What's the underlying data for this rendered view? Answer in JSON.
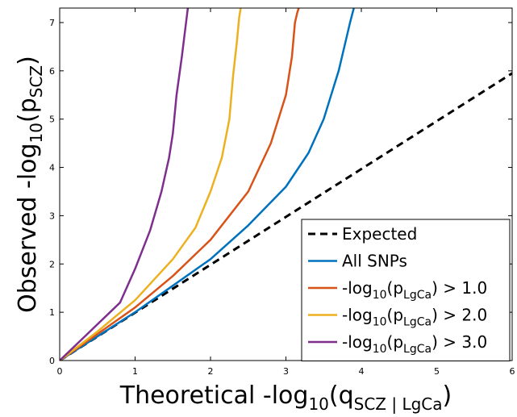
{
  "chart_data": {
    "type": "line",
    "xlabel": {
      "text": "Theoretical -log",
      "sub": "10",
      "rest": "(q",
      "sub2": "SCZ | LgCa",
      "end": ")"
    },
    "ylabel": {
      "text": "Observed -log",
      "sub": "10",
      "rest": "(p",
      "sub2": "SCZ",
      "end": ")"
    },
    "xlim": [
      0,
      6
    ],
    "ylim": [
      0,
      7.3
    ],
    "xticks": [
      "0",
      "1",
      "2",
      "3",
      "4",
      "5",
      "6"
    ],
    "yticks": [
      "0",
      "1",
      "2",
      "3",
      "4",
      "5",
      "6",
      "7"
    ],
    "grid": false,
    "legend_position": "bottom-right",
    "series": [
      {
        "name": "Expected",
        "color": "#000000",
        "dash": true,
        "legend": {
          "text": "Expected"
        },
        "x": [
          0,
          6
        ],
        "y": [
          0,
          5.95
        ]
      },
      {
        "name": "All SNPs",
        "color": "#0072bd",
        "dash": false,
        "legend": {
          "text": "All SNPs"
        },
        "x": [
          0,
          0.5,
          1.0,
          1.5,
          2.0,
          2.5,
          3.0,
          3.3,
          3.5,
          3.7,
          3.85,
          3.9
        ],
        "y": [
          0,
          0.5,
          1.0,
          1.55,
          2.1,
          2.8,
          3.6,
          4.3,
          5.0,
          6.0,
          7.0,
          7.3
        ]
      },
      {
        "name": "-log10(pLgCa) > 1.0",
        "color": "#d95319",
        "dash": false,
        "legend": {
          "pre": "-log",
          "sub": "10",
          "mid": "(p",
          "sub2": "LgCa",
          "post": ") > 1.0"
        },
        "x": [
          0,
          0.5,
          1.0,
          1.5,
          2.0,
          2.5,
          2.8,
          3.0,
          3.08,
          3.12,
          3.15,
          3.17
        ],
        "y": [
          0,
          0.55,
          1.1,
          1.75,
          2.5,
          3.5,
          4.5,
          5.5,
          6.3,
          7.0,
          7.2,
          7.3
        ]
      },
      {
        "name": "-log10(pLgCa) > 2.0",
        "color": "#edb120",
        "dash": false,
        "legend": {
          "pre": "-log",
          "sub": "10",
          "mid": "(p",
          "sub2": "LgCa",
          "post": ") > 2.0"
        },
        "x": [
          0,
          0.5,
          1.0,
          1.5,
          1.8,
          2.0,
          2.15,
          2.25,
          2.3,
          2.35,
          2.38,
          2.4
        ],
        "y": [
          0,
          0.6,
          1.25,
          2.1,
          2.75,
          3.5,
          4.2,
          5.0,
          5.9,
          6.6,
          7.1,
          7.3
        ]
      },
      {
        "name": "-log10(pLgCa) > 3.0",
        "color": "#7e2f8e",
        "dash": false,
        "legend": {
          "pre": "-log",
          "sub": "10",
          "mid": "(p",
          "sub2": "LgCa",
          "post": ") > 3.0"
        },
        "x": [
          0,
          0.4,
          0.8,
          1.0,
          1.2,
          1.35,
          1.45,
          1.5,
          1.55,
          1.62,
          1.66,
          1.7
        ],
        "y": [
          0,
          0.6,
          1.2,
          1.9,
          2.7,
          3.5,
          4.2,
          4.7,
          5.5,
          6.3,
          6.8,
          7.3
        ]
      }
    ]
  }
}
